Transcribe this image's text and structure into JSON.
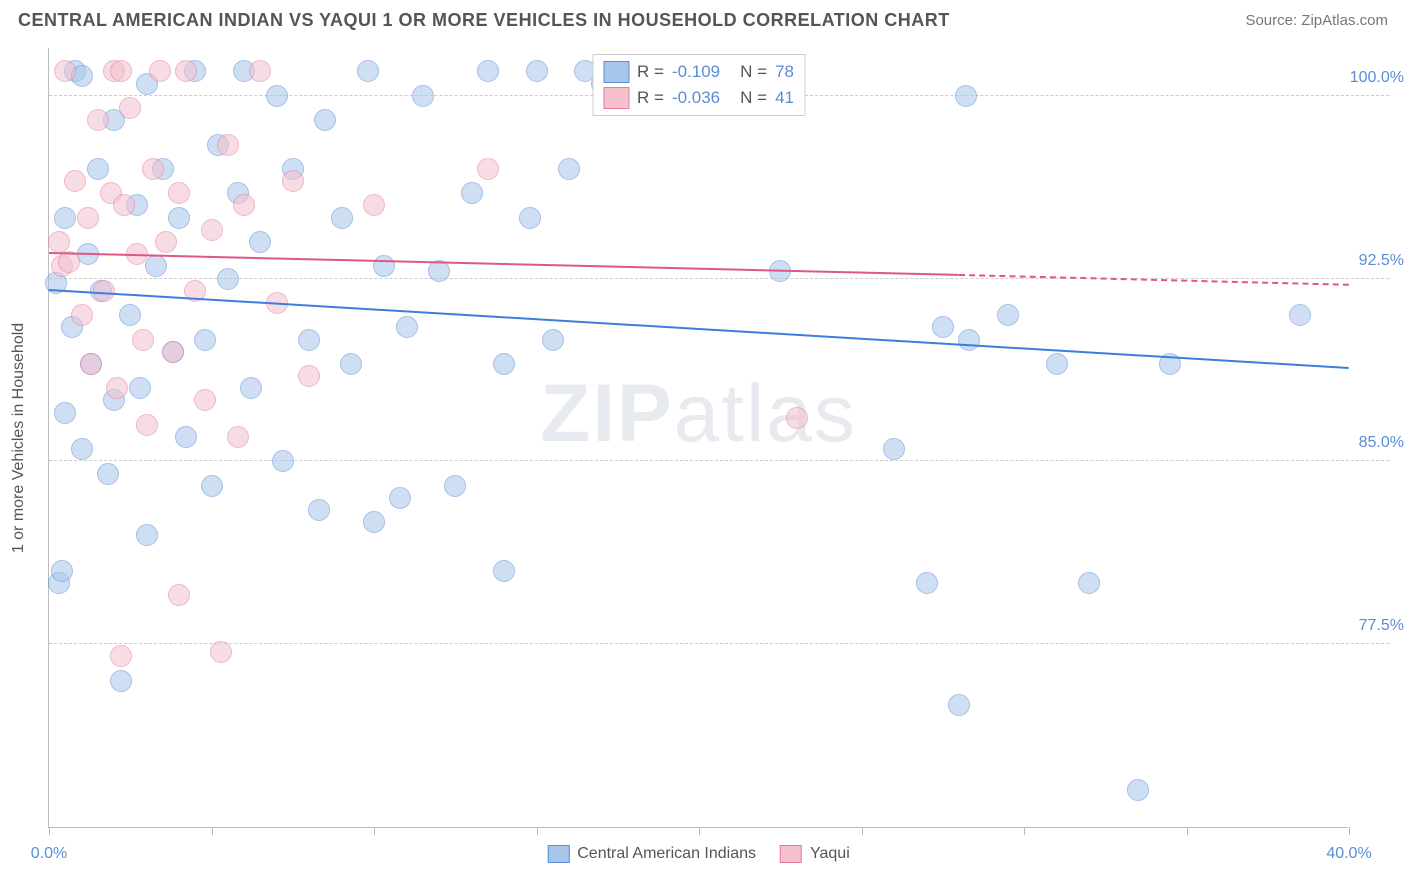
{
  "header": {
    "title": "CENTRAL AMERICAN INDIAN VS YAQUI 1 OR MORE VEHICLES IN HOUSEHOLD CORRELATION CHART",
    "source": "Source: ZipAtlas.com"
  },
  "watermark": {
    "prefix": "ZIP",
    "suffix": "atlas"
  },
  "chart": {
    "type": "scatter",
    "background_color": "#ffffff",
    "border_color": "#bbbbbb",
    "grid_color": "#cccccc",
    "xlim": [
      0,
      40
    ],
    "ylim": [
      70,
      102
    ],
    "yticks": [
      77.5,
      85.0,
      92.5,
      100.0
    ],
    "ytick_labels": [
      "77.5%",
      "85.0%",
      "92.5%",
      "100.0%"
    ],
    "xtick_positions": [
      0,
      5,
      10,
      15,
      20,
      25,
      30,
      35,
      40
    ],
    "xlabel_min": "0.0%",
    "xlabel_max": "40.0%",
    "ylabel": "1 or more Vehicles in Household",
    "label_color": "#555555",
    "tick_label_color": "#5b8dd6",
    "tick_fontsize": 16,
    "label_fontsize": 16,
    "marker_radius": 11,
    "marker_opacity": 0.55,
    "series": [
      {
        "name": "Central American Indians",
        "fill_color": "#a8c5eb",
        "stroke_color": "#5b8dd6",
        "trend_color": "#3d7edb",
        "R": "-0.109",
        "N": "78",
        "trend": {
          "x1": 0,
          "y1": 92.0,
          "x2": 40,
          "y2": 88.8,
          "dashed_from": 40
        },
        "points": [
          [
            0.2,
            92.3
          ],
          [
            0.3,
            80.0
          ],
          [
            0.5,
            87.0
          ],
          [
            0.5,
            95.0
          ],
          [
            0.7,
            90.5
          ],
          [
            0.8,
            101.0
          ],
          [
            1.0,
            85.5
          ],
          [
            1.2,
            93.5
          ],
          [
            1.3,
            89.0
          ],
          [
            1.5,
            97.0
          ],
          [
            1.6,
            92.0
          ],
          [
            1.8,
            84.5
          ],
          [
            2.0,
            99.0
          ],
          [
            2.2,
            76.0
          ],
          [
            2.5,
            91.0
          ],
          [
            2.7,
            95.5
          ],
          [
            2.8,
            88.0
          ],
          [
            3.0,
            100.5
          ],
          [
            3.0,
            82.0
          ],
          [
            3.3,
            93.0
          ],
          [
            3.5,
            97.0
          ],
          [
            3.8,
            89.5
          ],
          [
            4.0,
            95.0
          ],
          [
            4.2,
            86.0
          ],
          [
            4.5,
            101.0
          ],
          [
            4.8,
            90.0
          ],
          [
            5.0,
            84.0
          ],
          [
            5.2,
            98.0
          ],
          [
            5.5,
            92.5
          ],
          [
            5.8,
            96.0
          ],
          [
            6.0,
            101.0
          ],
          [
            6.2,
            88.0
          ],
          [
            6.5,
            94.0
          ],
          [
            7.0,
            100.0
          ],
          [
            7.2,
            85.0
          ],
          [
            7.5,
            97.0
          ],
          [
            8.0,
            90.0
          ],
          [
            8.3,
            83.0
          ],
          [
            8.5,
            99.0
          ],
          [
            9.0,
            95.0
          ],
          [
            9.3,
            89.0
          ],
          [
            9.8,
            101.0
          ],
          [
            10.0,
            82.5
          ],
          [
            10.3,
            93.0
          ],
          [
            10.8,
            83.5
          ],
          [
            11.0,
            90.5
          ],
          [
            11.5,
            100.0
          ],
          [
            12.0,
            92.8
          ],
          [
            12.5,
            84.0
          ],
          [
            13.0,
            96.0
          ],
          [
            13.5,
            101.0
          ],
          [
            14.0,
            89.0
          ],
          [
            14.0,
            80.5
          ],
          [
            14.8,
            95.0
          ],
          [
            15.0,
            101.0
          ],
          [
            15.5,
            90.0
          ],
          [
            16.0,
            97.0
          ],
          [
            16.5,
            101.0
          ],
          [
            17.0,
            100.5
          ],
          [
            18.0,
            101.0
          ],
          [
            19.0,
            101.0
          ],
          [
            21.0,
            101.0
          ],
          [
            22.5,
            92.8
          ],
          [
            26.0,
            85.5
          ],
          [
            27.0,
            80.0
          ],
          [
            27.5,
            90.5
          ],
          [
            28.0,
            75.0
          ],
          [
            28.2,
            100.0
          ],
          [
            28.3,
            90.0
          ],
          [
            29.5,
            91.0
          ],
          [
            31.0,
            89.0
          ],
          [
            32.0,
            80.0
          ],
          [
            33.5,
            71.5
          ],
          [
            34.5,
            89.0
          ],
          [
            38.5,
            91.0
          ],
          [
            0.4,
            80.5
          ],
          [
            1.0,
            100.8
          ],
          [
            2.0,
            87.5
          ]
        ]
      },
      {
        "name": "Yaqui",
        "fill_color": "#f4c0cd",
        "stroke_color": "#e77ba0",
        "trend_color": "#e05685",
        "R": "-0.036",
        "N": "41",
        "trend": {
          "x1": 0,
          "y1": 93.5,
          "x2": 28,
          "y2": 92.6,
          "dashed_from": 28,
          "x3": 40,
          "y3": 92.2
        },
        "points": [
          [
            0.3,
            94.0
          ],
          [
            0.4,
            93.0
          ],
          [
            0.5,
            101.0
          ],
          [
            0.6,
            93.2
          ],
          [
            0.8,
            96.5
          ],
          [
            1.0,
            91.0
          ],
          [
            1.2,
            95.0
          ],
          [
            1.3,
            89.0
          ],
          [
            1.5,
            99.0
          ],
          [
            1.7,
            92.0
          ],
          [
            1.9,
            96.0
          ],
          [
            2.0,
            101.0
          ],
          [
            2.1,
            88.0
          ],
          [
            2.3,
            95.5
          ],
          [
            2.5,
            99.5
          ],
          [
            2.7,
            93.5
          ],
          [
            2.9,
            90.0
          ],
          [
            3.0,
            86.5
          ],
          [
            3.2,
            97.0
          ],
          [
            3.4,
            101.0
          ],
          [
            3.6,
            94.0
          ],
          [
            3.8,
            89.5
          ],
          [
            4.0,
            96.0
          ],
          [
            4.2,
            101.0
          ],
          [
            4.5,
            92.0
          ],
          [
            4.8,
            87.5
          ],
          [
            5.0,
            94.5
          ],
          [
            5.3,
            77.2
          ],
          [
            5.5,
            98.0
          ],
          [
            5.8,
            86.0
          ],
          [
            6.0,
            95.5
          ],
          [
            6.5,
            101.0
          ],
          [
            7.0,
            91.5
          ],
          [
            7.5,
            96.5
          ],
          [
            8.0,
            88.5
          ],
          [
            10.0,
            95.5
          ],
          [
            13.5,
            97.0
          ],
          [
            2.2,
            77.0
          ],
          [
            4.0,
            79.5
          ],
          [
            23.0,
            86.8
          ],
          [
            2.2,
            101.0
          ]
        ]
      }
    ],
    "legend": {
      "bg": "#ffffff",
      "border": "#cccccc",
      "label_R": "R =",
      "label_N": "N ="
    },
    "bottom_legend": {
      "items": [
        "Central American Indians",
        "Yaqui"
      ]
    }
  }
}
